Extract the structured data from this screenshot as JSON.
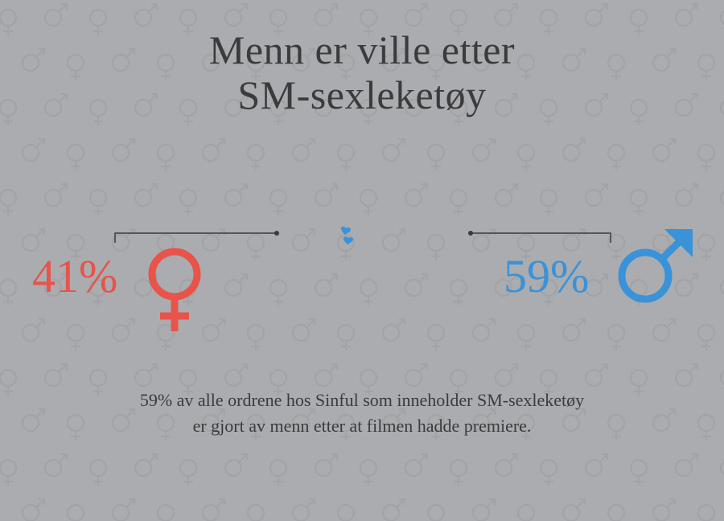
{
  "title": {
    "line1": "Menn er ville etter",
    "line2": "SM-sexleketøy"
  },
  "caption": {
    "line1": "59% av alle ordrene hos Sinful som inneholder SM-sexleketøy",
    "line2": "er gjort av menn etter at filmen hadde premiere."
  },
  "colors": {
    "background": "#abacaf",
    "pattern": "#a2a3a6",
    "female": "#e8534a",
    "male": "#3a92d8",
    "text": "#3b3b3d",
    "connector": "#3b3b3d"
  },
  "icons": {
    "female": "female-symbol-icon",
    "male": "male-symbol-icon",
    "background": "gender-symbol-pattern"
  },
  "chart_data": {
    "type": "pie",
    "categories": [
      "female",
      "male"
    ],
    "values": [
      41,
      59
    ],
    "labels": [
      "41%",
      "59%"
    ]
  }
}
